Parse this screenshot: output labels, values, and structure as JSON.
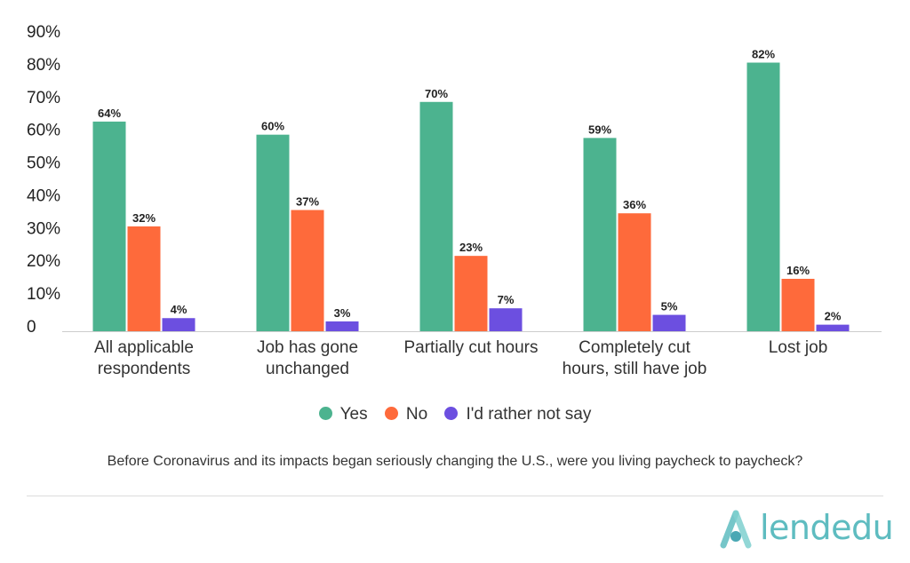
{
  "chart_data": {
    "type": "bar",
    "title": "Before Coronavirus and its impacts began seriously changing the U.S., were you living paycheck to paycheck?",
    "categories": [
      [
        "All applicable",
        "respondents"
      ],
      [
        "Job has gone",
        "unchanged"
      ],
      [
        "Partially cut hours"
      ],
      [
        "Completely cut",
        "hours, still have job"
      ],
      [
        "Lost job"
      ]
    ],
    "series": [
      {
        "name": "Yes",
        "color": "#4cb38f",
        "values": [
          64,
          60,
          70,
          59,
          82
        ]
      },
      {
        "name": "No",
        "color": "#fe6a3b",
        "values": [
          32,
          37,
          23,
          36,
          16
        ]
      },
      {
        "name": "I'd rather not say",
        "color": "#6c4fe0",
        "values": [
          4,
          3,
          7,
          5,
          2
        ]
      }
    ],
    "yticks": [
      "0",
      "10%",
      "20%",
      "30%",
      "40%",
      "50%",
      "60%",
      "70%",
      "80%",
      "90%"
    ],
    "ylim": [
      0,
      90
    ],
    "value_suffix": "%",
    "xlabel": "",
    "ylabel": "",
    "grid": false,
    "legend_position": "bottom"
  },
  "legend": [
    {
      "label": "Yes",
      "color": "#4cb38f"
    },
    {
      "label": "No",
      "color": "#fe6a3b"
    },
    {
      "label": "I'd rather not say",
      "color": "#6c4fe0"
    }
  ],
  "question": "Before Coronavirus and its impacts began seriously changing the U.S., were you living paycheck to paycheck?",
  "brand": {
    "name": "lendedu",
    "logo_icon": "lendedu-logo-icon",
    "color": "#5ebcc0"
  }
}
